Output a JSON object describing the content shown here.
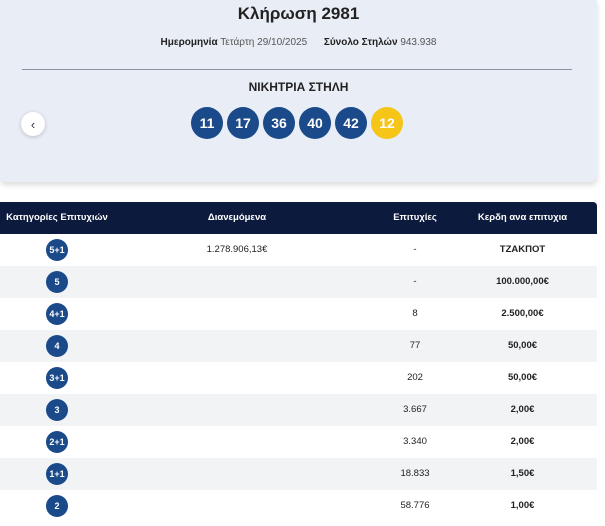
{
  "header": {
    "title": "Κλήρωση 2981",
    "date_label": "Ημερομηνία",
    "date": "Τετάρτη 29/10/2025",
    "columns_label": "Σύνολο Στηλών",
    "columns": "943.938",
    "winning_label": "ΝΙΚΗΤΡΙΑ ΣΤΗΛΗ",
    "numbers": [
      "11",
      "17",
      "36",
      "40",
      "42"
    ],
    "joker": "12"
  },
  "table": {
    "headers": [
      "Κατηγορίες Επιτυχιών",
      "Διανεμόμενα",
      "Επιτυχίες",
      "Κερδη ανα επιτυχια"
    ],
    "rows": [
      [
        "5+1",
        "1.278.906,13€",
        "-",
        "ΤΖΑΚΠΟΤ"
      ],
      [
        "5",
        null,
        "-",
        "100.000,00€"
      ],
      [
        "4+1",
        null,
        "8",
        "2.500,00€"
      ],
      [
        "4",
        null,
        "77",
        "50,00€"
      ],
      [
        "3+1",
        null,
        "202",
        "50,00€"
      ],
      [
        "3",
        null,
        "3.667",
        "2,00€"
      ],
      [
        "2+1",
        null,
        "3.340",
        "2,00€"
      ],
      [
        "1+1",
        null,
        "18.833",
        "1,50€"
      ],
      [
        "2",
        null,
        "58.776",
        "1,00€"
      ]
    ]
  }
}
